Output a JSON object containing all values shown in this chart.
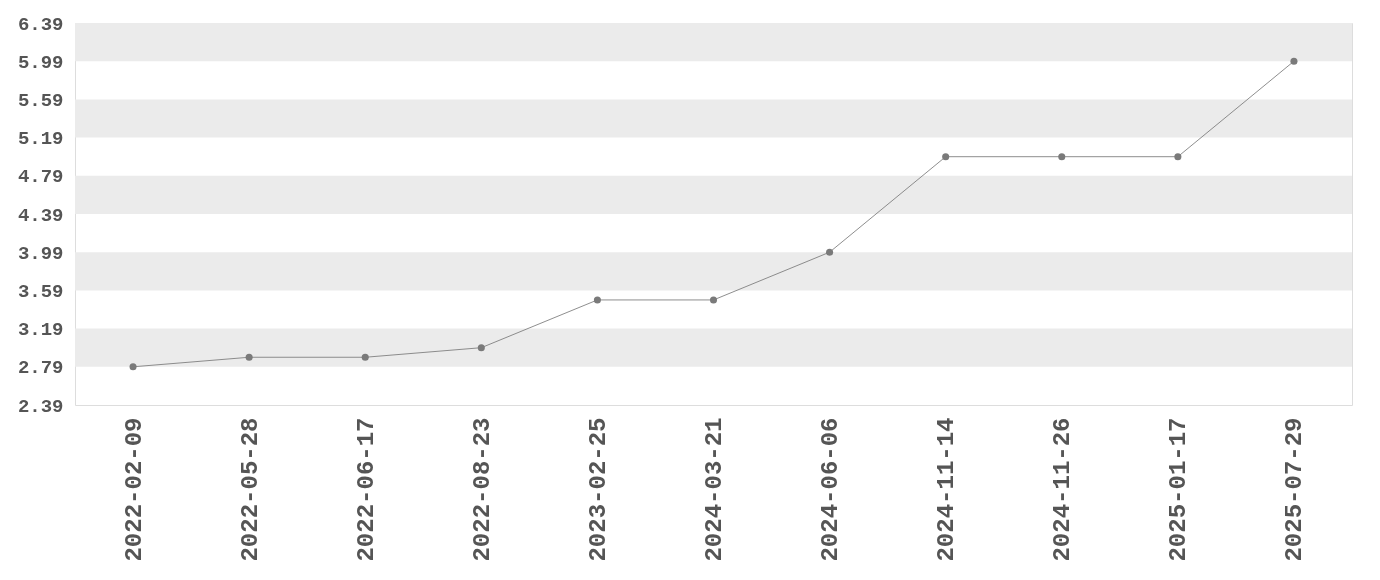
{
  "chart_data": {
    "type": "line",
    "categories": [
      "2022-02-09",
      "2022-05-28",
      "2022-06-17",
      "2022-08-23",
      "2023-02-25",
      "2024-03-21",
      "2024-06-06",
      "2024-11-14",
      "2024-11-26",
      "2025-01-17",
      "2025-07-29"
    ],
    "series": [
      {
        "color": "#7a7a7a",
        "values": [
          2.79,
          2.89,
          2.89,
          2.99,
          3.49,
          3.49,
          3.99,
          4.99,
          4.99,
          4.99,
          5.99
        ]
      }
    ],
    "ylim": [
      2.39,
      6.39
    ],
    "yticks": [
      2.39,
      2.79,
      3.19,
      3.59,
      3.99,
      4.39,
      4.79,
      5.19,
      5.59,
      5.99,
      6.39
    ],
    "bands": [
      {
        "axis": "y",
        "from": 2.79,
        "to": 3.19,
        "color": "#ebebeb"
      },
      {
        "axis": "y",
        "from": 3.59,
        "to": 3.99,
        "color": "#ebebeb"
      },
      {
        "axis": "y",
        "from": 4.39,
        "to": 4.79,
        "color": "#ebebeb"
      },
      {
        "axis": "y",
        "from": 5.19,
        "to": 5.59,
        "color": "#ebebeb"
      },
      {
        "axis": "y",
        "from": 5.99,
        "to": 6.39,
        "color": "#ebebeb"
      }
    ],
    "marker": "circle",
    "line_style": "solid"
  }
}
